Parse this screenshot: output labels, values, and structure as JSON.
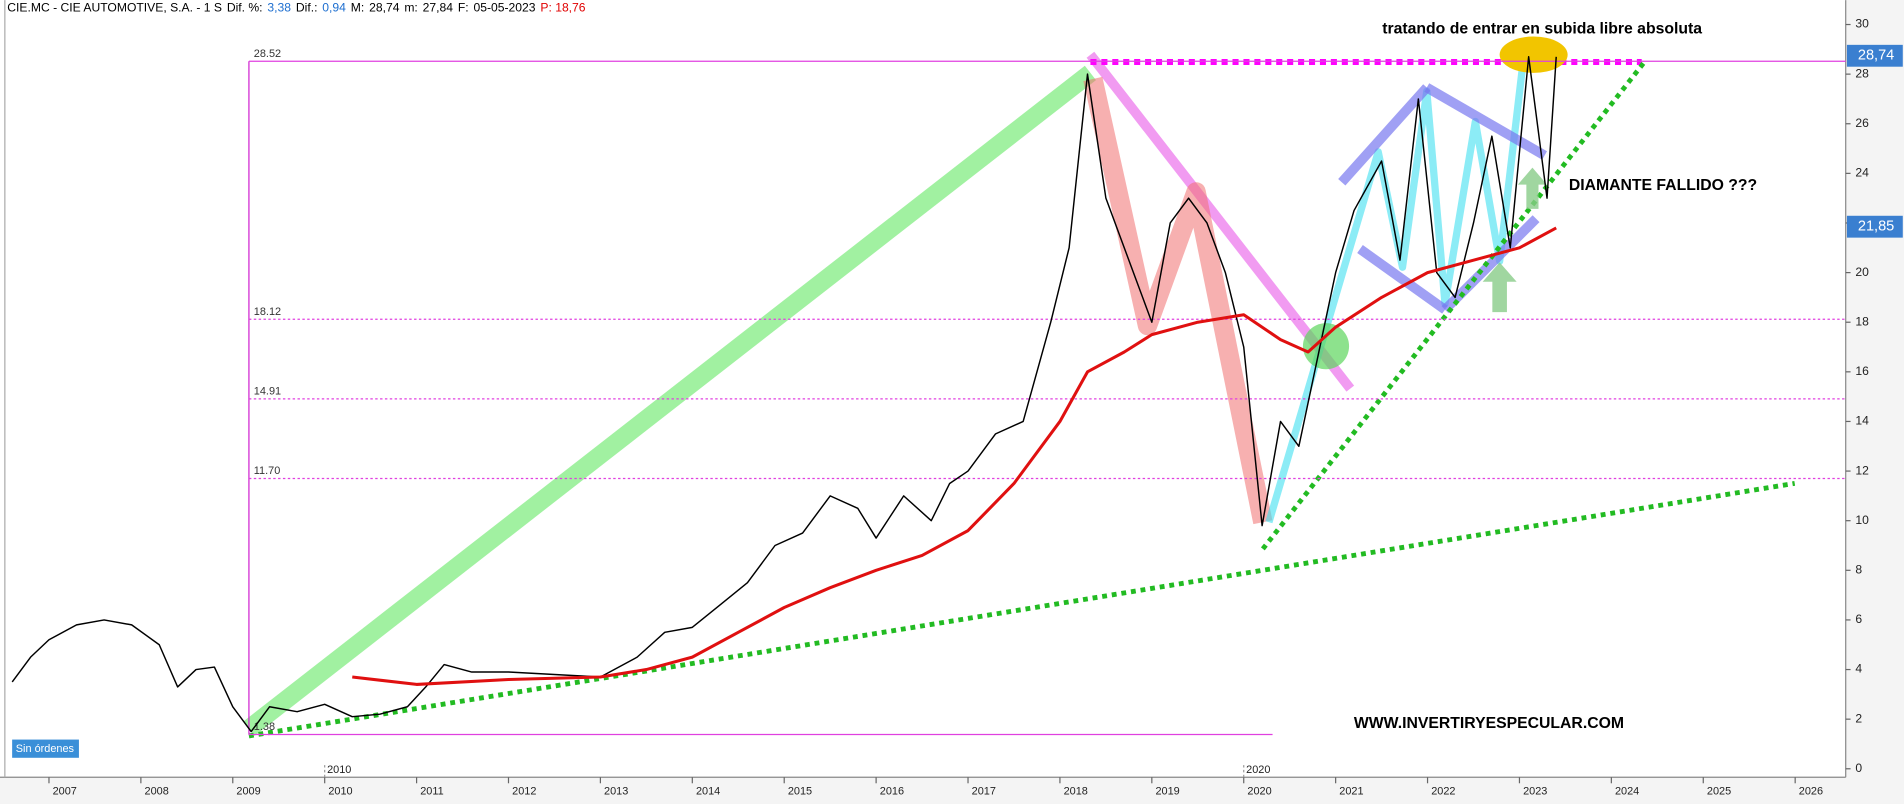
{
  "header": {
    "parts": [
      "CIE.MC - CIE AUTOMOTIVE, S.A. - 1 S",
      "Dif. %:",
      "3,38",
      "Dif.:",
      "0,94",
      "M:",
      "28,74",
      "m:",
      "27,84",
      "F:",
      "05-05-2023",
      "P: 18,76"
    ],
    "colors": [
      "#000000",
      "#000000",
      "#1e6fd0",
      "#000000",
      "#1e6fd0",
      "#000000",
      "#000000",
      "#000000",
      "#000000",
      "#000000",
      "#000000",
      "#e00000"
    ]
  },
  "chart_data": {
    "type": "line",
    "annotations": [
      "tratando de entrar en subida libre absoluta",
      "DIAMANTE FALLIDO ???",
      "WWW.INVERTIRYESPECULAR.COM"
    ],
    "status": "Sin órdenes",
    "xlim": [
      2006.52,
      2026.55
    ],
    "xticks": [
      2007,
      2008,
      2009,
      2010,
      2011,
      2012,
      2013,
      2014,
      2015,
      2016,
      2017,
      2018,
      2019,
      2020,
      2021,
      2022,
      2023,
      2024,
      2025,
      2026
    ],
    "x_marker_labels": [
      2010,
      2020
    ],
    "ylim": [
      -0.34,
      30.3
    ],
    "yticks": [
      0,
      2,
      4,
      6,
      8,
      10,
      12,
      14,
      16,
      18,
      20,
      22,
      24,
      26,
      28,
      30
    ],
    "levels": [
      {
        "value": 28.52,
        "label": "28.52"
      },
      {
        "value": 18.12,
        "label": "18.12"
      },
      {
        "value": 14.91,
        "label": "14.91"
      },
      {
        "value": 11.7,
        "label": "11.70"
      },
      {
        "value": 1.38,
        "label": "1.38"
      }
    ],
    "price_tags": [
      {
        "value": 28.74,
        "label": "28,74"
      },
      {
        "value": 21.85,
        "label": "21,85"
      }
    ],
    "series": [
      {
        "color": "#000000",
        "x": [
          2006.6,
          2006.8,
          2007.0,
          2007.3,
          2007.6,
          2007.9,
          2008.2,
          2008.4,
          2008.6,
          2008.8,
          2009.0,
          2009.2,
          2009.4,
          2009.7,
          2010.0,
          2010.3,
          2010.6,
          2010.9,
          2011.1,
          2011.3,
          2011.6,
          2012.0,
          2012.5,
          2013.0,
          2013.4,
          2013.7,
          2014.0,
          2014.3,
          2014.6,
          2014.9,
          2015.2,
          2015.5,
          2015.8,
          2016.0,
          2016.3,
          2016.6,
          2016.8,
          2017.0,
          2017.3,
          2017.6,
          2017.9,
          2018.1,
          2018.3,
          2018.5,
          2018.8,
          2019.0,
          2019.2,
          2019.4,
          2019.6,
          2019.8,
          2020.0,
          2020.2,
          2020.4,
          2020.6,
          2020.8,
          2021.0,
          2021.2,
          2021.5,
          2021.7,
          2021.9,
          2022.1,
          2022.3,
          2022.5,
          2022.7,
          2022.9,
          2023.1,
          2023.3,
          2023.4
        ],
        "values": [
          3.5,
          4.5,
          5.2,
          5.8,
          6.0,
          5.8,
          5.0,
          3.3,
          4.0,
          4.1,
          2.5,
          1.5,
          2.5,
          2.3,
          2.6,
          2.1,
          2.2,
          2.5,
          3.3,
          4.2,
          3.9,
          3.9,
          3.8,
          3.7,
          4.5,
          5.5,
          5.7,
          6.6,
          7.5,
          9.0,
          9.5,
          11.0,
          10.5,
          9.3,
          11.0,
          10.0,
          11.5,
          12.0,
          13.5,
          14.0,
          18.0,
          21.0,
          28.0,
          23.0,
          20.0,
          18.0,
          22.0,
          23.0,
          22.0,
          20.0,
          17.0,
          9.8,
          14.0,
          13.0,
          16.5,
          20.0,
          22.5,
          24.5,
          20.5,
          27.0,
          20.0,
          19.0,
          22.0,
          25.5,
          21.0,
          28.7,
          23.0,
          28.7
        ]
      },
      {
        "color": "#e01010",
        "x": [
          2010.3,
          2011.0,
          2012.0,
          2013.0,
          2013.5,
          2014.0,
          2014.5,
          2015.0,
          2015.5,
          2016.0,
          2016.5,
          2017.0,
          2017.5,
          2018.0,
          2018.3,
          2018.7,
          2019.0,
          2019.5,
          2020.0,
          2020.4,
          2020.7,
          2021.0,
          2021.5,
          2022.0,
          2022.5,
          2023.0,
          2023.4
        ],
        "values": [
          3.7,
          3.4,
          3.6,
          3.7,
          4.0,
          4.5,
          5.5,
          6.5,
          7.3,
          8.0,
          8.6,
          9.6,
          11.5,
          14.0,
          16.0,
          16.8,
          17.5,
          18.0,
          18.3,
          17.3,
          16.8,
          17.8,
          19.0,
          20.0,
          20.5,
          21.0,
          21.8
        ]
      }
    ]
  }
}
